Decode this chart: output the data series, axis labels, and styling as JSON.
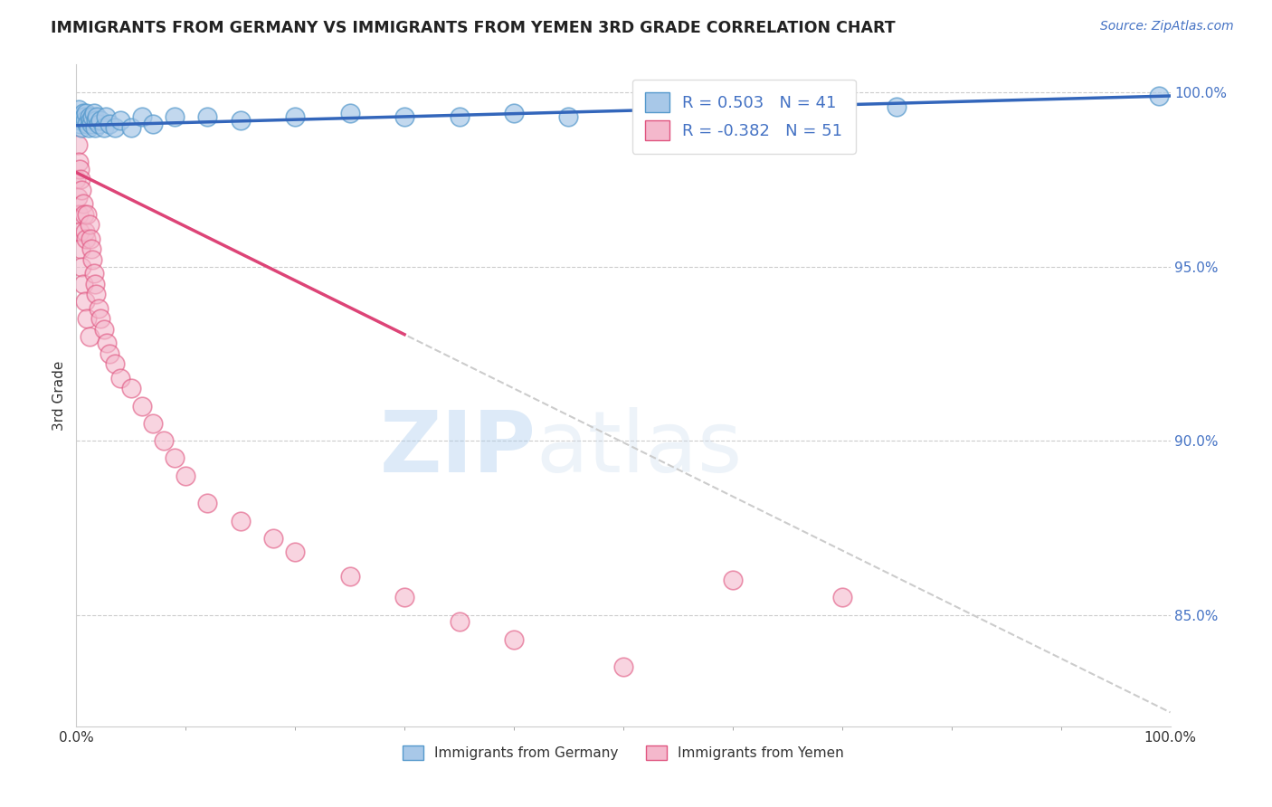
{
  "title": "IMMIGRANTS FROM GERMANY VS IMMIGRANTS FROM YEMEN 3RD GRADE CORRELATION CHART",
  "ylabel": "3rd Grade",
  "source_text": "Source: ZipAtlas.com",
  "legend_entries": [
    "Immigrants from Germany",
    "Immigrants from Yemen"
  ],
  "r_germany": 0.503,
  "n_germany": 41,
  "r_yemen": -0.382,
  "n_yemen": 51,
  "color_germany": "#a8c8e8",
  "color_yemen": "#f4b8cc",
  "edge_germany": "#5599cc",
  "edge_yemen": "#e05580",
  "trendline_germany": "#3366bb",
  "trendline_yemen": "#dd4477",
  "trendline_dashed": "#cccccc",
  "xlim": [
    0.0,
    1.0
  ],
  "ylim": [
    0.818,
    1.008
  ],
  "x_ticks": [
    0.0,
    1.0
  ],
  "y_ticks": [
    0.85,
    0.9,
    0.95,
    1.0
  ],
  "watermark_zip": "ZIP",
  "watermark_atlas": "atlas",
  "germany_x": [
    0.001,
    0.002,
    0.003,
    0.004,
    0.005,
    0.006,
    0.007,
    0.008,
    0.009,
    0.01,
    0.011,
    0.012,
    0.013,
    0.014,
    0.015,
    0.016,
    0.017,
    0.018,
    0.019,
    0.02,
    0.022,
    0.025,
    0.027,
    0.03,
    0.035,
    0.04,
    0.05,
    0.06,
    0.07,
    0.09,
    0.12,
    0.15,
    0.2,
    0.25,
    0.3,
    0.35,
    0.4,
    0.45,
    0.55,
    0.75,
    0.99
  ],
  "germany_y": [
    0.993,
    0.995,
    0.991,
    0.992,
    0.99,
    0.994,
    0.993,
    0.992,
    0.994,
    0.991,
    0.99,
    0.993,
    0.992,
    0.991,
    0.993,
    0.994,
    0.99,
    0.992,
    0.993,
    0.991,
    0.992,
    0.99,
    0.993,
    0.991,
    0.99,
    0.992,
    0.99,
    0.993,
    0.991,
    0.993,
    0.993,
    0.992,
    0.993,
    0.994,
    0.993,
    0.993,
    0.994,
    0.993,
    0.994,
    0.996,
    0.999
  ],
  "yemen_x": [
    0.0,
    0.001,
    0.001,
    0.002,
    0.002,
    0.003,
    0.003,
    0.004,
    0.004,
    0.005,
    0.005,
    0.006,
    0.006,
    0.007,
    0.008,
    0.008,
    0.009,
    0.01,
    0.01,
    0.012,
    0.012,
    0.013,
    0.014,
    0.015,
    0.016,
    0.017,
    0.018,
    0.02,
    0.022,
    0.025,
    0.028,
    0.03,
    0.035,
    0.04,
    0.05,
    0.06,
    0.07,
    0.08,
    0.09,
    0.1,
    0.12,
    0.15,
    0.18,
    0.2,
    0.25,
    0.3,
    0.35,
    0.4,
    0.5,
    0.6,
    0.7
  ],
  "yemen_y": [
    0.975,
    0.985,
    0.97,
    0.98,
    0.965,
    0.978,
    0.96,
    0.975,
    0.955,
    0.972,
    0.95,
    0.968,
    0.945,
    0.965,
    0.96,
    0.94,
    0.958,
    0.965,
    0.935,
    0.962,
    0.93,
    0.958,
    0.955,
    0.952,
    0.948,
    0.945,
    0.942,
    0.938,
    0.935,
    0.932,
    0.928,
    0.925,
    0.922,
    0.918,
    0.915,
    0.91,
    0.905,
    0.9,
    0.895,
    0.89,
    0.882,
    0.877,
    0.872,
    0.868,
    0.861,
    0.855,
    0.848,
    0.843,
    0.835,
    0.86,
    0.855
  ]
}
